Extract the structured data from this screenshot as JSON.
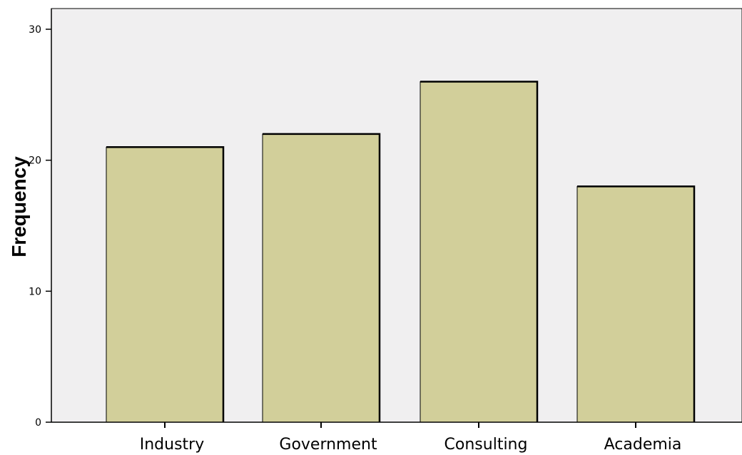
{
  "chart_data": {
    "type": "bar",
    "title": "",
    "xlabel": "",
    "ylabel": "Frequency",
    "categories": [
      "Industry",
      "Government",
      "Consulting",
      "Academia"
    ],
    "values": [
      21,
      22,
      26,
      18
    ],
    "ylim": [
      0,
      30
    ],
    "yticks": [
      "0",
      "10",
      "20",
      "30"
    ],
    "grid": false,
    "legend": "none",
    "colors": {
      "bar_fill": "#d2cf9a",
      "bar_border": "#000000",
      "plot_background": "#f0eff0",
      "axis": "#000000"
    }
  }
}
